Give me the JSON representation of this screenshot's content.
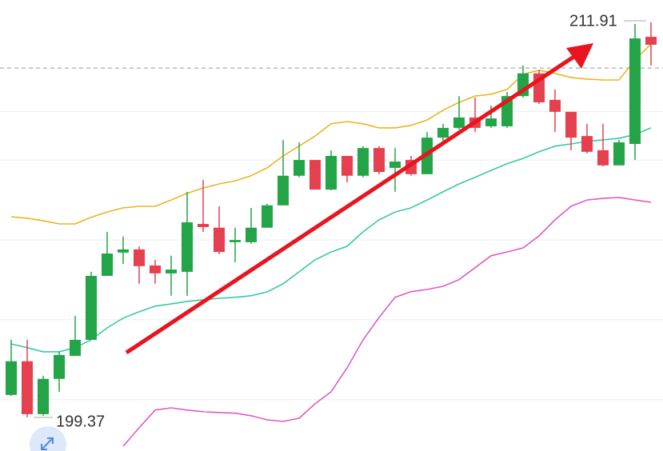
{
  "chart_data": {
    "type": "candlestick",
    "up_color": "#22a447",
    "down_color": "#e5404f",
    "open": [
      200.08,
      201.15,
      199.47,
      200.59,
      201.32,
      201.83,
      203.86,
      204.6,
      204.7,
      204.19,
      203.94,
      203.99,
      205.51,
      205.39,
      204.93,
      204.93,
      205.39,
      206.1,
      207.04,
      207.54,
      206.6,
      207.67,
      207.04,
      207.92,
      207.29,
      207.54,
      207.09,
      208.25,
      208.56,
      208.89,
      208.61,
      208.61,
      209.57,
      210.29,
      209.45,
      209.07,
      208.3,
      207.85,
      207.37,
      208.05,
      211.45
    ],
    "high": [
      201.83,
      201.83,
      200.69,
      201.45,
      202.59,
      203.99,
      205.26,
      205.11,
      204.8,
      204.37,
      204.5,
      206.53,
      206.91,
      206.07,
      205.39,
      206.02,
      206.15,
      208.18,
      208.1,
      207.54,
      207.85,
      207.67,
      207.98,
      207.98,
      207.92,
      207.67,
      208.43,
      208.69,
      209.57,
      209.52,
      209.27,
      209.7,
      210.54,
      210.39,
      209.78,
      209.07,
      208.69,
      208.69,
      208.18,
      211.86,
      211.91
    ],
    "low": [
      200.05,
      199.37,
      199.42,
      200.18,
      201.32,
      201.83,
      203.86,
      204.24,
      203.61,
      203.61,
      203.23,
      203.23,
      205.26,
      204.55,
      204.29,
      204.88,
      205.39,
      206.1,
      206.99,
      206.6,
      206.58,
      206.83,
      206.99,
      207.09,
      206.53,
      207.04,
      207.09,
      208.05,
      208.51,
      208.43,
      208.56,
      208.56,
      209.52,
      209.32,
      208.43,
      207.85,
      207.75,
      207.34,
      207.37,
      207.54,
      210.54
    ],
    "close": [
      201.15,
      199.47,
      200.59,
      201.35,
      201.83,
      203.86,
      204.57,
      204.7,
      204.17,
      203.94,
      204.06,
      205.56,
      205.41,
      204.62,
      205.0,
      205.39,
      206.1,
      207.04,
      207.54,
      206.6,
      207.67,
      207.04,
      207.92,
      207.16,
      207.49,
      207.09,
      208.25,
      208.56,
      208.89,
      208.56,
      208.86,
      209.57,
      210.29,
      209.37,
      209.07,
      208.25,
      207.8,
      207.37,
      208.1,
      211.4,
      211.2
    ],
    "bands": [
      {
        "color": "#e9b523",
        "values": [
          205.74,
          205.69,
          205.61,
          205.51,
          205.51,
          205.72,
          205.89,
          206.02,
          206.07,
          206.07,
          206.27,
          206.48,
          206.65,
          206.78,
          206.88,
          207.04,
          207.29,
          207.67,
          207.98,
          208.3,
          208.69,
          208.76,
          208.69,
          208.56,
          208.56,
          208.64,
          208.81,
          209.12,
          209.37,
          209.57,
          209.63,
          209.78,
          210.26,
          210.39,
          210.29,
          210.16,
          210.11,
          210.08,
          210.08,
          210.72,
          211.22
        ]
      },
      {
        "color": "#38c9a6",
        "values": [
          201.7,
          201.58,
          201.45,
          201.45,
          201.58,
          201.83,
          202.21,
          202.52,
          202.72,
          202.9,
          202.97,
          203.05,
          203.1,
          203.15,
          203.18,
          203.23,
          203.35,
          203.61,
          203.99,
          204.37,
          204.62,
          204.8,
          205.26,
          205.64,
          205.89,
          206.02,
          206.27,
          206.53,
          206.78,
          206.99,
          207.21,
          207.42,
          207.59,
          207.8,
          207.98,
          208.05,
          208.13,
          208.18,
          208.23,
          208.35,
          208.56
        ]
      },
      {
        "color": "#dc5cc3",
        "values": [
          null,
          null,
          null,
          null,
          null,
          null,
          null,
          198.45,
          199.04,
          199.6,
          199.67,
          199.6,
          199.55,
          199.52,
          199.5,
          199.42,
          199.29,
          199.24,
          199.34,
          199.8,
          200.18,
          200.94,
          201.83,
          202.54,
          203.18,
          203.36,
          203.43,
          203.53,
          203.74,
          204.12,
          204.5,
          204.62,
          204.75,
          205.13,
          205.64,
          206.07,
          206.27,
          206.32,
          206.35,
          206.27,
          206.2
        ]
      }
    ],
    "reference_line": 210.46,
    "grid_lines": [
      209.08,
      207.54,
      205.0,
      202.47,
      199.93
    ],
    "ylim": [
      198.3,
      212.62
    ],
    "grid": true
  }
}
